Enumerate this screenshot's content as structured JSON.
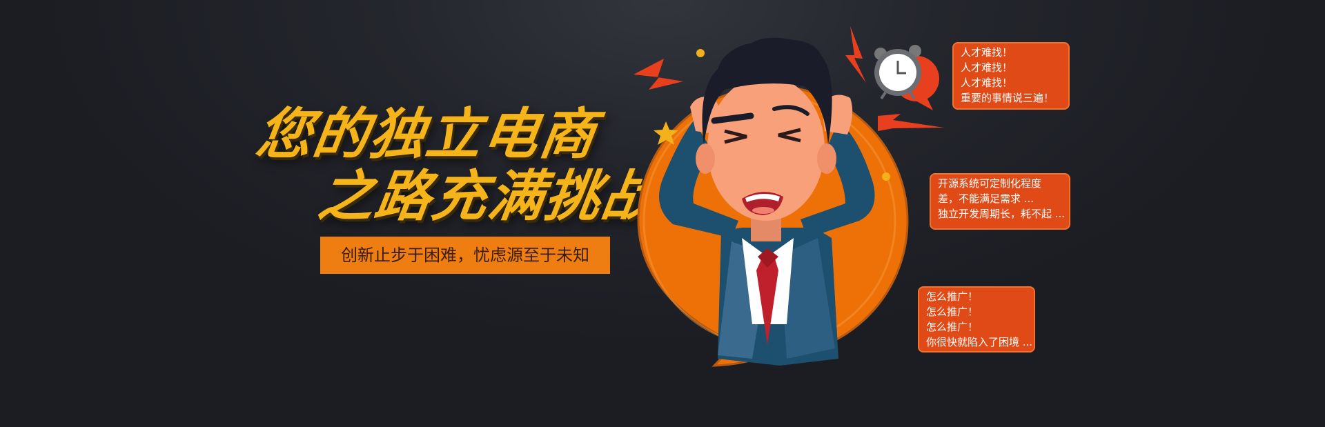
{
  "headline": {
    "line1": "您的独立电商",
    "line2": "之路充满挑战"
  },
  "subtitle": "创新止步于困难，忧虑源至于未知",
  "bubbles": [
    {
      "lines": [
        "人才难找！",
        "人才难找！",
        "人才难找！",
        "重要的事情说三遍！"
      ]
    },
    {
      "lines": [
        "开源系统可定制化程度",
        "差，不能满足需求 ...",
        "独立开发周期长，耗不起 ..."
      ]
    },
    {
      "lines": [
        "怎么推广！",
        "怎么推广！",
        "怎么推广！",
        "你很快就陷入了困境 ..."
      ]
    }
  ],
  "colors": {
    "background": "#1f2128",
    "headline": "#f5b41a",
    "accent_orange": "#ee7d12",
    "bubble": "#df4a16",
    "suit": "#1d4f6e",
    "skin": "#f7a07a",
    "tie": "#c0202c"
  },
  "icons": [
    "alarm-clock-icon",
    "lightning-icon",
    "star-icon",
    "frustrated-man-illustration"
  ]
}
